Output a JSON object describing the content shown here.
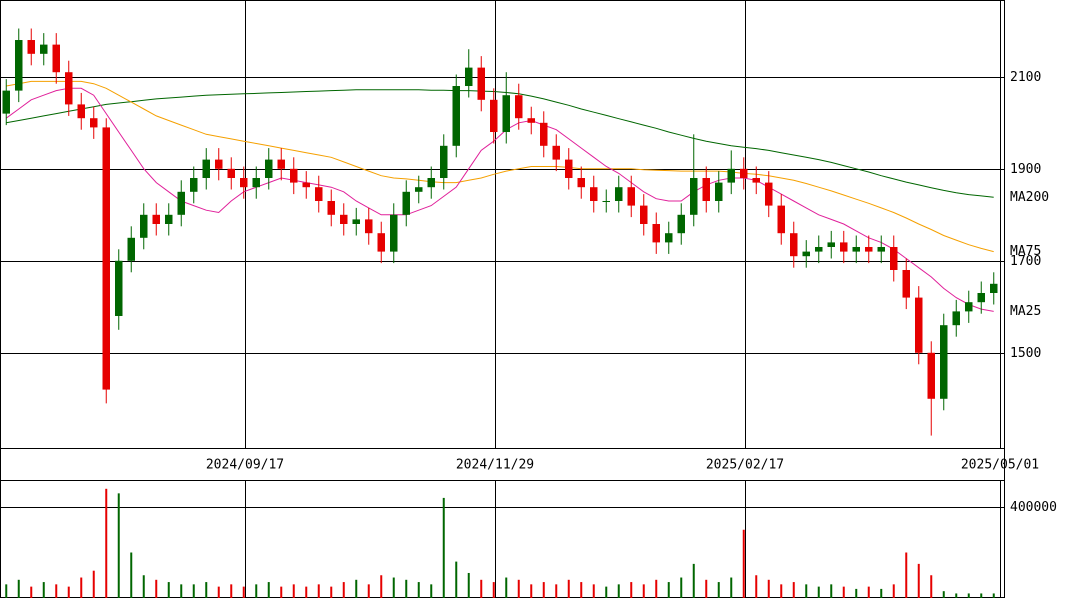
{
  "chart_data": [
    {
      "type": "candlestick",
      "open": [
        2020,
        2070,
        2180,
        2150,
        2170,
        2110,
        2040,
        2010,
        1990,
        1580,
        1700,
        1750,
        1800,
        1780,
        1800,
        1850,
        1880,
        1920,
        1900,
        1880,
        1860,
        1880,
        1920,
        1900,
        1870,
        1860,
        1830,
        1800,
        1780,
        1790,
        1760,
        1720,
        1800,
        1850,
        1860,
        1880,
        1950,
        2080,
        2120,
        2050,
        1980,
        2060,
        2010,
        2000,
        1950,
        1920,
        1880,
        1860,
        1830,
        1830,
        1860,
        1820,
        1780,
        1740,
        1760,
        1800,
        1880,
        1830,
        1870,
        1900,
        1880,
        1870,
        1820,
        1760,
        1710,
        1720,
        1730,
        1740,
        1720,
        1730,
        1720,
        1730,
        1680,
        1620,
        1500,
        1400,
        1560,
        1590,
        1610,
        1630
      ],
      "high": [
        2095,
        2205,
        2205,
        2195,
        2195,
        2135,
        2065,
        2035,
        2010,
        1725,
        1775,
        1825,
        1825,
        1825,
        1875,
        1905,
        1945,
        1945,
        1925,
        1905,
        1905,
        1945,
        1945,
        1925,
        1895,
        1885,
        1855,
        1825,
        1815,
        1815,
        1785,
        1825,
        1875,
        1885,
        1905,
        1975,
        2105,
        2160,
        2145,
        2075,
        2110,
        2085,
        2035,
        2025,
        1975,
        1945,
        1905,
        1885,
        1855,
        1885,
        1885,
        1845,
        1805,
        1785,
        1825,
        1975,
        1905,
        1895,
        1940,
        1925,
        1905,
        1895,
        1845,
        1785,
        1745,
        1755,
        1765,
        1765,
        1755,
        1755,
        1755,
        1755,
        1705,
        1645,
        1525,
        1585,
        1615,
        1635,
        1655,
        1675
      ],
      "low": [
        1995,
        2045,
        2125,
        2125,
        2085,
        2015,
        1985,
        1965,
        1390,
        1550,
        1675,
        1725,
        1755,
        1755,
        1775,
        1825,
        1855,
        1875,
        1855,
        1835,
        1835,
        1855,
        1875,
        1845,
        1835,
        1805,
        1775,
        1755,
        1755,
        1735,
        1695,
        1695,
        1775,
        1825,
        1835,
        1855,
        1925,
        2055,
        2025,
        1955,
        1955,
        1985,
        1975,
        1925,
        1895,
        1855,
        1835,
        1805,
        1805,
        1805,
        1795,
        1755,
        1715,
        1715,
        1735,
        1775,
        1805,
        1805,
        1845,
        1855,
        1845,
        1795,
        1735,
        1685,
        1685,
        1695,
        1705,
        1695,
        1695,
        1695,
        1695,
        1655,
        1595,
        1475,
        1320,
        1375,
        1535,
        1565,
        1585,
        1605
      ],
      "close": [
        2070,
        2180,
        2150,
        2170,
        2110,
        2040,
        2010,
        1990,
        1420,
        1700,
        1750,
        1800,
        1780,
        1800,
        1850,
        1880,
        1920,
        1900,
        1880,
        1860,
        1880,
        1920,
        1900,
        1870,
        1860,
        1830,
        1800,
        1780,
        1790,
        1760,
        1720,
        1800,
        1850,
        1860,
        1880,
        1950,
        2080,
        2120,
        2050,
        1980,
        2060,
        2010,
        2000,
        1950,
        1920,
        1880,
        1860,
        1830,
        1830,
        1860,
        1820,
        1780,
        1740,
        1760,
        1800,
        1880,
        1830,
        1870,
        1900,
        1880,
        1870,
        1820,
        1760,
        1710,
        1720,
        1730,
        1740,
        1720,
        1730,
        1720,
        1730,
        1680,
        1620,
        1500,
        1400,
        1560,
        1590,
        1610,
        1630,
        1650
      ],
      "up_color": "#006600",
      "down_color": "#e60000",
      "series": [
        {
          "name": "MA200",
          "color": "#006600",
          "values": [
            2000,
            2005,
            2010,
            2015,
            2020,
            2025,
            2030,
            2035,
            2040,
            2043,
            2046,
            2049,
            2052,
            2054,
            2056,
            2058,
            2060,
            2061,
            2062,
            2063,
            2064,
            2065,
            2066,
            2067,
            2068,
            2069,
            2070,
            2071,
            2072,
            2072,
            2072,
            2072,
            2072,
            2072,
            2071,
            2071,
            2070,
            2070,
            2069,
            2068,
            2066,
            2063,
            2058,
            2052,
            2045,
            2038,
            2030,
            2023,
            2016,
            2009,
            2002,
            1995,
            1988,
            1980,
            1973,
            1966,
            1960,
            1955,
            1950,
            1947,
            1944,
            1940,
            1935,
            1930,
            1925,
            1920,
            1914,
            1907,
            1900,
            1893,
            1885,
            1878,
            1871,
            1865,
            1859,
            1853,
            1848,
            1844,
            1841,
            1838
          ]
        },
        {
          "name": "MA75",
          "color": "#f5a000",
          "values": [
            2080,
            2085,
            2090,
            2090,
            2090,
            2090,
            2090,
            2085,
            2075,
            2060,
            2045,
            2030,
            2015,
            2005,
            1995,
            1985,
            1975,
            1970,
            1965,
            1960,
            1955,
            1950,
            1945,
            1940,
            1935,
            1930,
            1925,
            1915,
            1905,
            1895,
            1885,
            1880,
            1878,
            1875,
            1872,
            1870,
            1870,
            1875,
            1880,
            1888,
            1895,
            1900,
            1905,
            1905,
            1905,
            1903,
            1900,
            1900,
            1900,
            1900,
            1900,
            1898,
            1897,
            1896,
            1895,
            1895,
            1895,
            1895,
            1893,
            1890,
            1888,
            1885,
            1880,
            1875,
            1868,
            1860,
            1852,
            1843,
            1834,
            1825,
            1815,
            1805,
            1793,
            1780,
            1768,
            1755,
            1745,
            1735,
            1727,
            1720
          ]
        },
        {
          "name": "MA25",
          "color": "#e0209a",
          "values": [
            2010,
            2030,
            2050,
            2060,
            2070,
            2075,
            2075,
            2060,
            2020,
            1980,
            1940,
            1900,
            1870,
            1850,
            1830,
            1820,
            1810,
            1805,
            1830,
            1850,
            1860,
            1870,
            1880,
            1875,
            1870,
            1865,
            1860,
            1850,
            1830,
            1815,
            1800,
            1800,
            1800,
            1810,
            1820,
            1840,
            1860,
            1900,
            1940,
            1960,
            1985,
            2000,
            2005,
            1995,
            1985,
            1965,
            1945,
            1925,
            1905,
            1890,
            1870,
            1850,
            1835,
            1830,
            1830,
            1850,
            1865,
            1875,
            1880,
            1880,
            1875,
            1860,
            1845,
            1830,
            1815,
            1800,
            1790,
            1780,
            1765,
            1750,
            1740,
            1725,
            1705,
            1685,
            1665,
            1640,
            1620,
            1605,
            1595,
            1590
          ]
        }
      ],
      "ylim": [
        1293,
        2267
      ],
      "yticks": [
        1500,
        1700,
        1900,
        2100
      ],
      "xlim": [
        0,
        80.4
      ],
      "xticks": [
        {
          "value": 19.6,
          "label": "2024/09/17"
        },
        {
          "value": 39.6,
          "label": "2024/11/29"
        },
        {
          "value": 59.6,
          "label": "2025/02/17"
        },
        {
          "value": 80,
          "label": "2025/05/01"
        }
      ]
    },
    {
      "type": "bar",
      "values": [
        60000,
        80000,
        50000,
        70000,
        60000,
        50000,
        90000,
        120000,
        480000,
        460000,
        200000,
        100000,
        80000,
        70000,
        60000,
        60000,
        70000,
        50000,
        60000,
        50000,
        60000,
        70000,
        50000,
        60000,
        50000,
        60000,
        50000,
        70000,
        80000,
        60000,
        100000,
        90000,
        80000,
        70000,
        60000,
        440000,
        160000,
        110000,
        80000,
        70000,
        90000,
        80000,
        60000,
        70000,
        60000,
        80000,
        70000,
        60000,
        50000,
        60000,
        70000,
        60000,
        80000,
        70000,
        90000,
        150000,
        80000,
        70000,
        90000,
        300000,
        100000,
        80000,
        60000,
        70000,
        60000,
        50000,
        60000,
        50000,
        40000,
        50000,
        40000,
        60000,
        200000,
        150000,
        100000,
        30000,
        20000,
        20000,
        20000,
        20000
      ],
      "ylim": [
        0,
        518700
      ],
      "yticks": [
        400000
      ]
    }
  ]
}
